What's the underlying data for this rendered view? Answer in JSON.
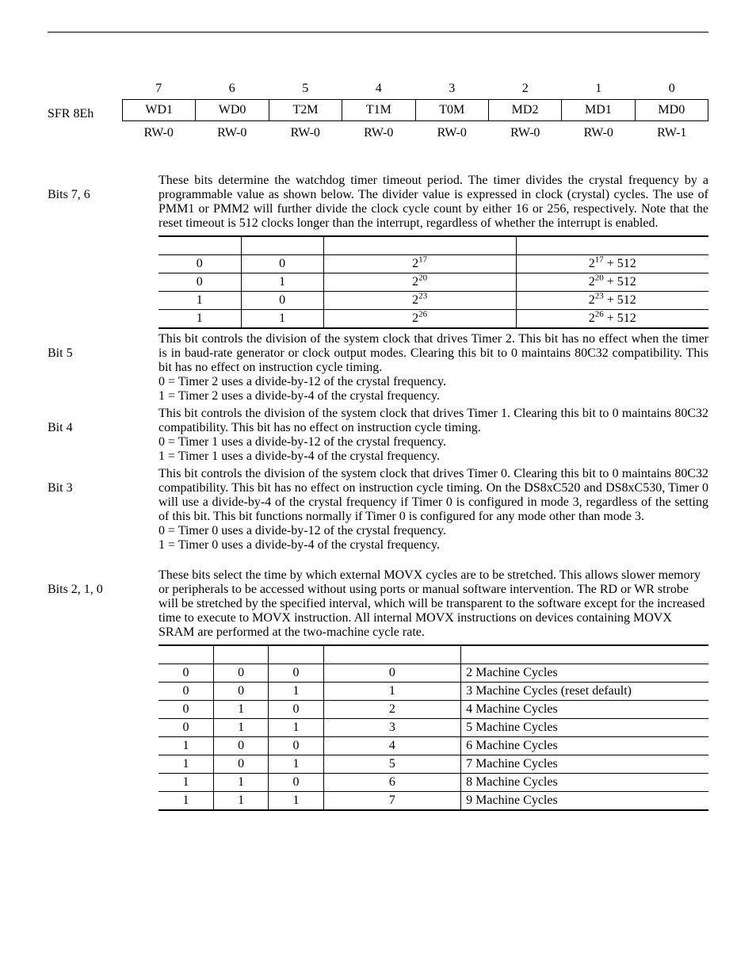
{
  "top_rule": true,
  "sfr": {
    "label": "SFR 8Eh",
    "bit_numbers": [
      "7",
      "6",
      "5",
      "4",
      "3",
      "2",
      "1",
      "0"
    ],
    "bit_names": [
      "WD1",
      "WD0",
      "T2M",
      "T1M",
      "T0M",
      "MD2",
      "MD1",
      "MD0"
    ],
    "rw": [
      "RW-0",
      "RW-0",
      "RW-0",
      "RW-0",
      "RW-0",
      "RW-0",
      "RW-0",
      "RW-1"
    ]
  },
  "defs": [
    {
      "label": "Bits 7, 6",
      "body_html": "These bits determine the watchdog timer timeout period. The timer divides the crystal frequency by a programmable value as shown below. The divider value is expressed in clock (crystal) cycles. The use of PMM1 or PMM2 will further divide the clock cycle count by either 16 or 256, respectively. Note that the reset timeout is 512 clocks longer than the interrupt, regardless of whether the interrupt is enabled.",
      "table": {
        "type": "watchdog",
        "cols": 4,
        "col_widths": [
          "15%",
          "15%",
          "35%",
          "35%"
        ],
        "rows": [
          [
            "0",
            "0",
            "2<sup>17</sup>",
            "2<sup>17</sup> + 512"
          ],
          [
            "0",
            "1",
            "2<sup>20</sup>",
            "2<sup>20</sup> + 512"
          ],
          [
            "1",
            "0",
            "2<sup>23</sup>",
            "2<sup>23</sup> + 512"
          ],
          [
            "1",
            "1",
            "2<sup>26</sup>",
            "2<sup>26</sup> + 512"
          ]
        ]
      }
    },
    {
      "label": "Bit 5",
      "body_html": "This bit controls the division of the system clock that drives Timer 2. This bit has no effect when the timer is in baud-rate generator or clock output modes. Clearing this bit to 0 maintains 80C32 compatibility. This bit has no effect on instruction cycle timing.",
      "options": [
        "0 = Timer 2 uses a divide-by-12 of the crystal frequency.",
        "1 = Timer 2 uses a divide-by-4 of the crystal frequency."
      ]
    },
    {
      "label": "Bit 4",
      "body_html": "This bit controls the division of the system clock that drives Timer 1. Clearing this bit to 0 maintains 80C32 compatibility. This bit has no effect on instruction cycle timing.",
      "options": [
        "0 = Timer 1 uses a divide-by-12 of the crystal frequency.",
        "1 = Timer 1 uses a divide-by-4 of the crystal frequency."
      ]
    },
    {
      "label": "Bit 3",
      "body_html": "This bit controls the division of the system clock that drives Timer 0. Clearing this bit to 0 maintains 80C32 compatibility. This bit has no effect on instruction cycle timing. On the DS8xC520 and DS8xC530, Timer 0 will use a divide-by-4 of the crystal frequency if Timer 0 is configured in mode 3, regardless of the setting of this bit. This bit functions normally if Timer 0 is configured for any mode other than mode 3.",
      "options": [
        "0 = Timer 0 uses a divide-by-12 of the crystal frequency.",
        "1 = Timer 0 uses a divide-by-4 of the crystal frequency."
      ]
    },
    {
      "label": "Bits 2, 1, 0",
      "body_html": "These bits select the time by which external MOVX cycles are to be stretched. This allows slower memory or peripherals to be accessed without using ports or manual software intervention. The RD or WR strobe will be stretched by the specified interval, which will be transparent to the software except for the increased time to execute to MOVX instruction. All internal MOVX instructions on devices containing MOVX SRAM are performed at the two-machine cycle rate.",
      "body_justify": false,
      "table": {
        "type": "stretch",
        "cols": 5,
        "col_widths": [
          "10%",
          "10%",
          "10%",
          "25%",
          "45%"
        ],
        "rows": [
          [
            "0",
            "0",
            "0",
            "0",
            "2 Machine Cycles"
          ],
          [
            "0",
            "0",
            "1",
            "1",
            "3 Machine Cycles (reset default)"
          ],
          [
            "0",
            "1",
            "0",
            "2",
            "4 Machine Cycles"
          ],
          [
            "0",
            "1",
            "1",
            "3",
            "5 Machine Cycles"
          ],
          [
            "1",
            "0",
            "0",
            "4",
            "6 Machine Cycles"
          ],
          [
            "1",
            "0",
            "1",
            "5",
            "7 Machine Cycles"
          ],
          [
            "1",
            "1",
            "0",
            "6",
            "8 Machine Cycles"
          ],
          [
            "1",
            "1",
            "1",
            "7",
            "9 Machine Cycles"
          ]
        ]
      }
    }
  ]
}
